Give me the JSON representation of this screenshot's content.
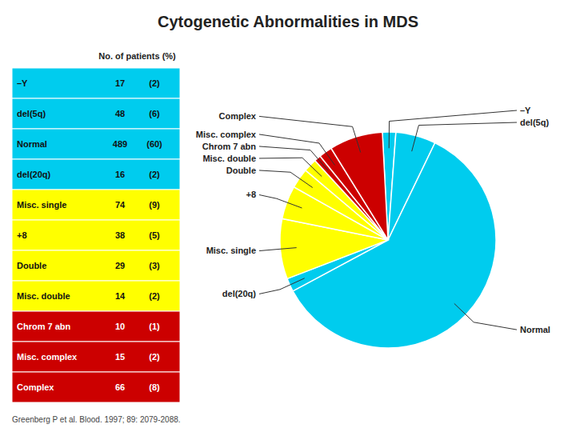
{
  "chart_data": [
    {
      "type": "pie",
      "title": "Cytogenetic Abnormalities in MDS",
      "categories": [
        "–Y",
        "del(5q)",
        "Normal",
        "del(20q)",
        "Misc. single",
        "+8",
        "Double",
        "Misc. double",
        "Chrom 7 abn",
        "Misc. complex",
        "Complex"
      ],
      "values": [
        2,
        6,
        60,
        2,
        9,
        5,
        3,
        2,
        1,
        2,
        8
      ],
      "colors": [
        "#00CCEE",
        "#00CCEE",
        "#00CCEE",
        "#00CCEE",
        "#FFFF00",
        "#FFFF00",
        "#FFFF00",
        "#FFFF00",
        "#CC0000",
        "#CC0000",
        "#CC0000"
      ],
      "annotations": [
        "Greenberg P et al. Blood. 1997; 89: 2079-2088."
      ]
    },
    {
      "type": "table",
      "header": "No. of patients (%)",
      "categories": [
        "–Y",
        "del(5q)",
        "Normal",
        "del(20q)",
        "Misc. single",
        "+8",
        "Double",
        "Misc. double",
        "Chrom 7 abn",
        "Misc. complex",
        "Complex"
      ],
      "columns": [
        {
          "values": [
            17,
            48,
            489,
            16,
            74,
            38,
            29,
            14,
            10,
            15,
            66
          ]
        },
        {
          "values": [
            2,
            6,
            60,
            2,
            9,
            5,
            3,
            2,
            1,
            2,
            8
          ],
          "value_labels": [
            "(2)",
            "(6)",
            "(60)",
            "(2)",
            "(9)",
            "(5)",
            "(3)",
            "(2)",
            "(1)",
            "(2)",
            "(8)"
          ]
        }
      ],
      "colors": [
        "#00CCEE",
        "#00CCEE",
        "#00CCEE",
        "#00CCEE",
        "#FFFF00",
        "#FFFF00",
        "#FFFF00",
        "#FFFF00",
        "#CC0000",
        "#CC0000",
        "#CC0000"
      ]
    }
  ]
}
